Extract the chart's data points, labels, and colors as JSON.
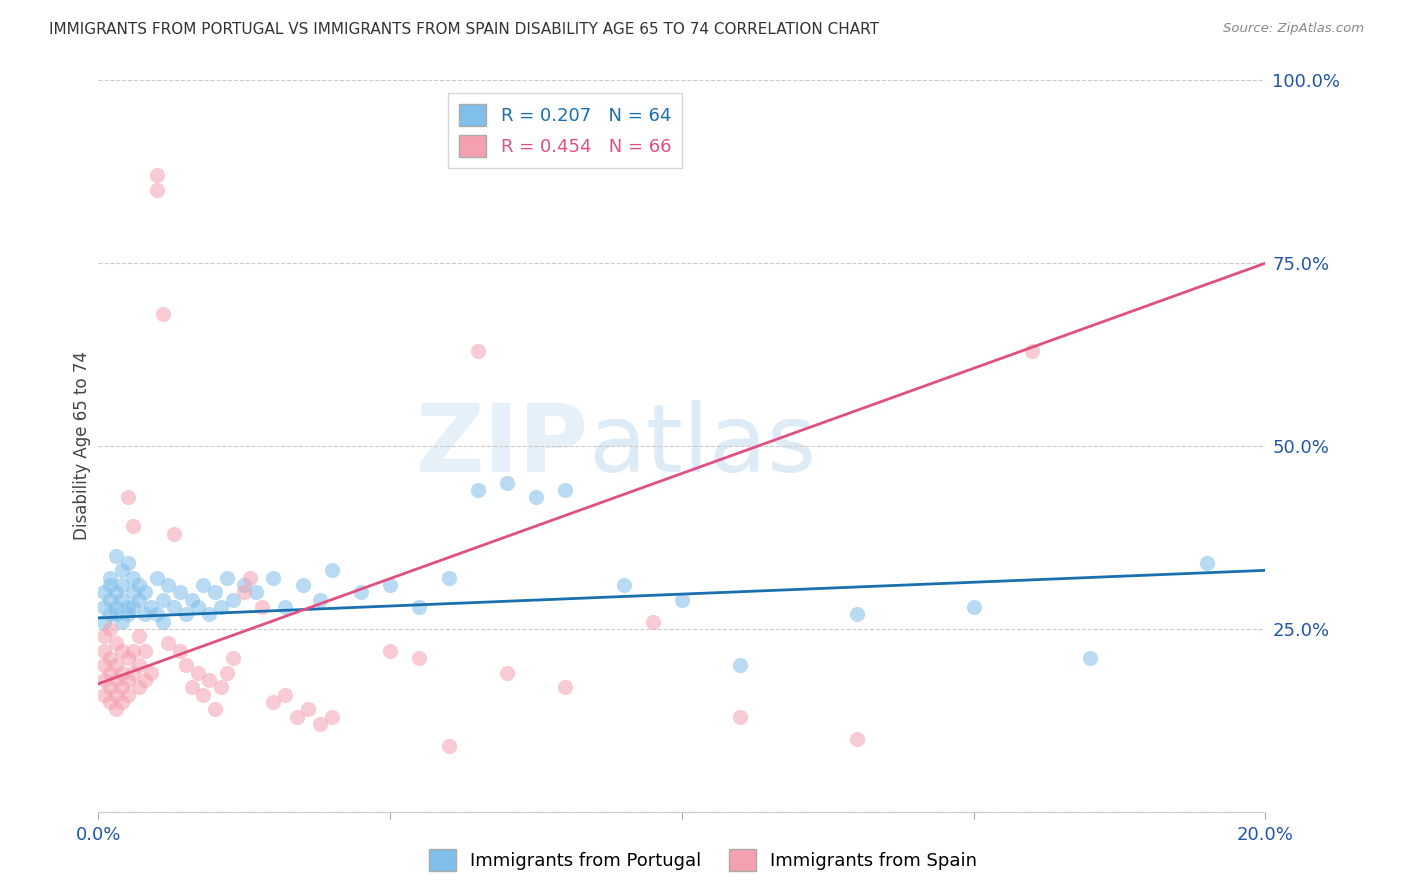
{
  "title": "IMMIGRANTS FROM PORTUGAL VS IMMIGRANTS FROM SPAIN DISABILITY AGE 65 TO 74 CORRELATION CHART",
  "source": "Source: ZipAtlas.com",
  "ylabel": "Disability Age 65 to 74",
  "xlim": [
    0.0,
    0.2
  ],
  "ylim": [
    0.0,
    1.0
  ],
  "xticks": [
    0.0,
    0.05,
    0.1,
    0.15,
    0.2
  ],
  "xtick_labels": [
    "0.0%",
    "",
    "",
    "",
    "20.0%"
  ],
  "yticks": [
    0.0,
    0.25,
    0.5,
    0.75,
    1.0
  ],
  "ytick_labels": [
    "",
    "25.0%",
    "50.0%",
    "75.0%",
    "100.0%"
  ],
  "portugal_R": 0.207,
  "portugal_N": 64,
  "spain_R": 0.454,
  "spain_N": 66,
  "portugal_color": "#7fbfea",
  "spain_color": "#f4a0b0",
  "portugal_trend_color": "#1a6faf",
  "spain_trend_color": "#e05080",
  "background_color": "#ffffff",
  "watermark_zip": "ZIP",
  "watermark_atlas": "atlas",
  "portugal_scatter": [
    [
      0.001,
      0.28
    ],
    [
      0.001,
      0.26
    ],
    [
      0.001,
      0.3
    ],
    [
      0.002,
      0.29
    ],
    [
      0.002,
      0.32
    ],
    [
      0.002,
      0.27
    ],
    [
      0.002,
      0.31
    ],
    [
      0.003,
      0.28
    ],
    [
      0.003,
      0.35
    ],
    [
      0.003,
      0.3
    ],
    [
      0.003,
      0.27
    ],
    [
      0.004,
      0.33
    ],
    [
      0.004,
      0.29
    ],
    [
      0.004,
      0.26
    ],
    [
      0.004,
      0.31
    ],
    [
      0.005,
      0.28
    ],
    [
      0.005,
      0.34
    ],
    [
      0.005,
      0.27
    ],
    [
      0.006,
      0.3
    ],
    [
      0.006,
      0.32
    ],
    [
      0.006,
      0.28
    ],
    [
      0.007,
      0.29
    ],
    [
      0.007,
      0.31
    ],
    [
      0.008,
      0.27
    ],
    [
      0.008,
      0.3
    ],
    [
      0.009,
      0.28
    ],
    [
      0.01,
      0.32
    ],
    [
      0.01,
      0.27
    ],
    [
      0.011,
      0.29
    ],
    [
      0.011,
      0.26
    ],
    [
      0.012,
      0.31
    ],
    [
      0.013,
      0.28
    ],
    [
      0.014,
      0.3
    ],
    [
      0.015,
      0.27
    ],
    [
      0.016,
      0.29
    ],
    [
      0.017,
      0.28
    ],
    [
      0.018,
      0.31
    ],
    [
      0.019,
      0.27
    ],
    [
      0.02,
      0.3
    ],
    [
      0.021,
      0.28
    ],
    [
      0.022,
      0.32
    ],
    [
      0.023,
      0.29
    ],
    [
      0.025,
      0.31
    ],
    [
      0.027,
      0.3
    ],
    [
      0.03,
      0.32
    ],
    [
      0.032,
      0.28
    ],
    [
      0.035,
      0.31
    ],
    [
      0.038,
      0.29
    ],
    [
      0.04,
      0.33
    ],
    [
      0.045,
      0.3
    ],
    [
      0.05,
      0.31
    ],
    [
      0.055,
      0.28
    ],
    [
      0.06,
      0.32
    ],
    [
      0.065,
      0.44
    ],
    [
      0.07,
      0.45
    ],
    [
      0.075,
      0.43
    ],
    [
      0.08,
      0.44
    ],
    [
      0.09,
      0.31
    ],
    [
      0.1,
      0.29
    ],
    [
      0.11,
      0.2
    ],
    [
      0.13,
      0.27
    ],
    [
      0.15,
      0.28
    ],
    [
      0.17,
      0.21
    ],
    [
      0.19,
      0.34
    ]
  ],
  "spain_scatter": [
    [
      0.001,
      0.24
    ],
    [
      0.001,
      0.22
    ],
    [
      0.001,
      0.2
    ],
    [
      0.001,
      0.18
    ],
    [
      0.001,
      0.16
    ],
    [
      0.002,
      0.25
    ],
    [
      0.002,
      0.21
    ],
    [
      0.002,
      0.19
    ],
    [
      0.002,
      0.17
    ],
    [
      0.002,
      0.15
    ],
    [
      0.003,
      0.23
    ],
    [
      0.003,
      0.2
    ],
    [
      0.003,
      0.18
    ],
    [
      0.003,
      0.16
    ],
    [
      0.003,
      0.14
    ],
    [
      0.004,
      0.22
    ],
    [
      0.004,
      0.19
    ],
    [
      0.004,
      0.17
    ],
    [
      0.004,
      0.15
    ],
    [
      0.005,
      0.43
    ],
    [
      0.005,
      0.21
    ],
    [
      0.005,
      0.18
    ],
    [
      0.005,
      0.16
    ],
    [
      0.006,
      0.39
    ],
    [
      0.006,
      0.22
    ],
    [
      0.006,
      0.19
    ],
    [
      0.007,
      0.24
    ],
    [
      0.007,
      0.2
    ],
    [
      0.007,
      0.17
    ],
    [
      0.008,
      0.22
    ],
    [
      0.008,
      0.18
    ],
    [
      0.009,
      0.19
    ],
    [
      0.01,
      0.87
    ],
    [
      0.01,
      0.85
    ],
    [
      0.011,
      0.68
    ],
    [
      0.012,
      0.23
    ],
    [
      0.013,
      0.38
    ],
    [
      0.014,
      0.22
    ],
    [
      0.015,
      0.2
    ],
    [
      0.016,
      0.17
    ],
    [
      0.017,
      0.19
    ],
    [
      0.018,
      0.16
    ],
    [
      0.019,
      0.18
    ],
    [
      0.02,
      0.14
    ],
    [
      0.021,
      0.17
    ],
    [
      0.022,
      0.19
    ],
    [
      0.023,
      0.21
    ],
    [
      0.025,
      0.3
    ],
    [
      0.026,
      0.32
    ],
    [
      0.028,
      0.28
    ],
    [
      0.03,
      0.15
    ],
    [
      0.032,
      0.16
    ],
    [
      0.034,
      0.13
    ],
    [
      0.036,
      0.14
    ],
    [
      0.038,
      0.12
    ],
    [
      0.04,
      0.13
    ],
    [
      0.05,
      0.22
    ],
    [
      0.055,
      0.21
    ],
    [
      0.06,
      0.09
    ],
    [
      0.065,
      0.63
    ],
    [
      0.07,
      0.19
    ],
    [
      0.08,
      0.17
    ],
    [
      0.095,
      0.26
    ],
    [
      0.11,
      0.13
    ],
    [
      0.13,
      0.1
    ],
    [
      0.16,
      0.63
    ]
  ]
}
